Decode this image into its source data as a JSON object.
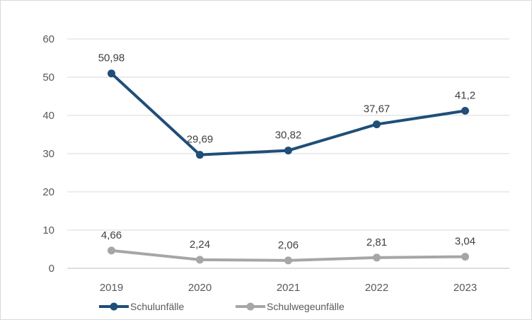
{
  "chart_data": {
    "type": "line",
    "categories": [
      "2019",
      "2020",
      "2021",
      "2022",
      "2023"
    ],
    "ylim": [
      0,
      60
    ],
    "yticks": [
      0,
      10,
      20,
      30,
      40,
      50,
      60
    ],
    "grid": true,
    "legend_position": "bottom",
    "series": [
      {
        "name": "Schulunfälle",
        "color": "#1f4e79",
        "values": [
          50.98,
          29.69,
          30.82,
          37.67,
          41.2
        ],
        "labels": [
          "50,98",
          "29,69",
          "30,82",
          "37,67",
          "41,2"
        ]
      },
      {
        "name": "Schulwegeunfälle",
        "color": "#a6a6a6",
        "values": [
          4.66,
          2.24,
          2.06,
          2.81,
          3.04
        ],
        "labels": [
          "4,66",
          "2,24",
          "2,06",
          "2,81",
          "3,04"
        ]
      }
    ]
  }
}
